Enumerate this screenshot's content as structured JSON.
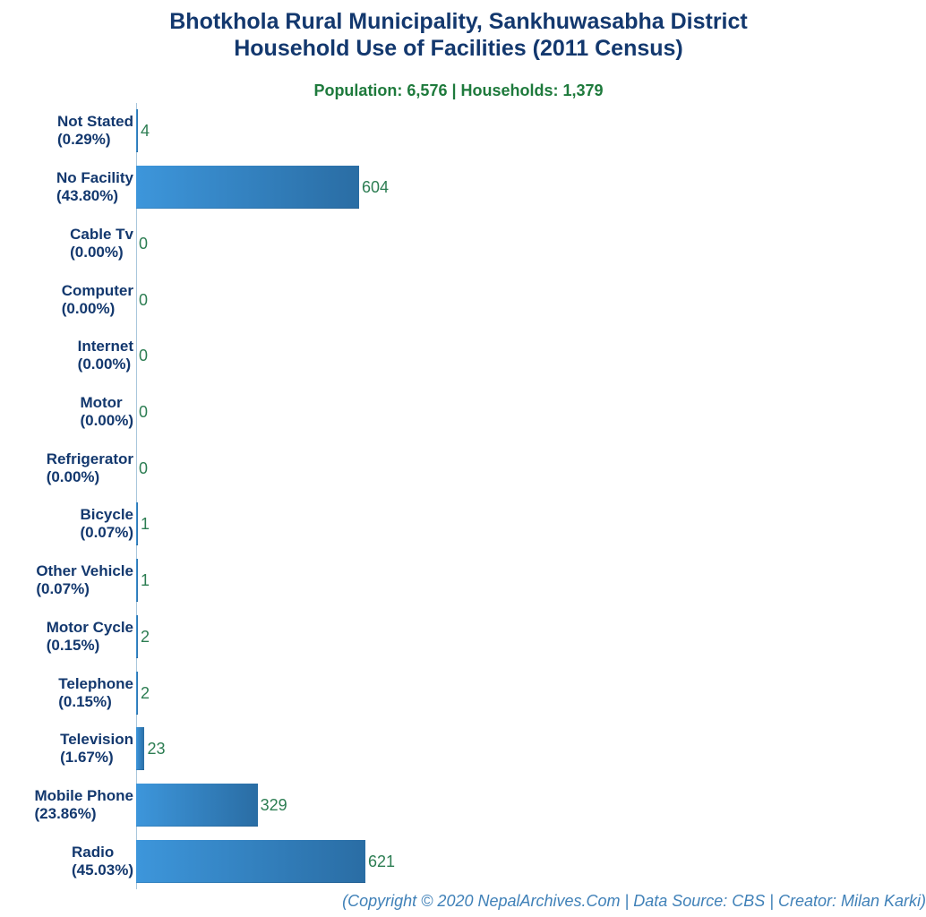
{
  "title": {
    "line1": "Bhotkhola Rural Municipality, Sankhuwasabha District",
    "line2": "Household Use of Facilities (2011 Census)"
  },
  "subtitle": "Population: 6,576 | Households: 1,379",
  "footer": "(Copyright © 2020 NepalArchives.Com | Data Source: CBS | Creator: Milan Karki)",
  "colors": {
    "title": "#13386E",
    "subtitle_green": "#1E7A3C",
    "value_green": "#2C7D52",
    "bar_gradient_start": "#3D96DB",
    "bar_gradient_end": "#2A6DA4",
    "axis_line": "#A9C6DB",
    "footer_blue": "#4081B8"
  },
  "chart_data": {
    "type": "bar",
    "orientation": "horizontal",
    "title": "Bhotkhola Rural Municipality, Sankhuwasabha District — Household Use of Facilities (2011 Census)",
    "subtitle": "Population: 6,576 | Households: 1,379",
    "categories": [
      "Not Stated",
      "No Facility",
      "Cable Tv",
      "Computer",
      "Internet",
      "Motor",
      "Refrigerator",
      "Bicycle",
      "Other Vehicle",
      "Motor Cycle",
      "Telephone",
      "Television",
      "Mobile Phone",
      "Radio"
    ],
    "percent_labels": [
      "(0.29%)",
      "(43.80%)",
      "(0.00%)",
      "(0.00%)",
      "(0.00%)",
      "(0.00%)",
      "(0.00%)",
      "(0.07%)",
      "(0.07%)",
      "(0.15%)",
      "(0.15%)",
      "(1.67%)",
      "(23.86%)",
      "(45.03%)"
    ],
    "values": [
      4,
      604,
      0,
      0,
      0,
      0,
      0,
      1,
      1,
      2,
      2,
      23,
      329,
      621
    ],
    "percents": [
      0.29,
      43.8,
      0.0,
      0.0,
      0.0,
      0.0,
      0.0,
      0.07,
      0.07,
      0.15,
      0.15,
      1.67,
      23.86,
      45.03
    ],
    "xlabel": "",
    "ylabel": "",
    "xlim": [
      0,
      621
    ],
    "grid": false,
    "legend": "none",
    "value_labels": true
  }
}
